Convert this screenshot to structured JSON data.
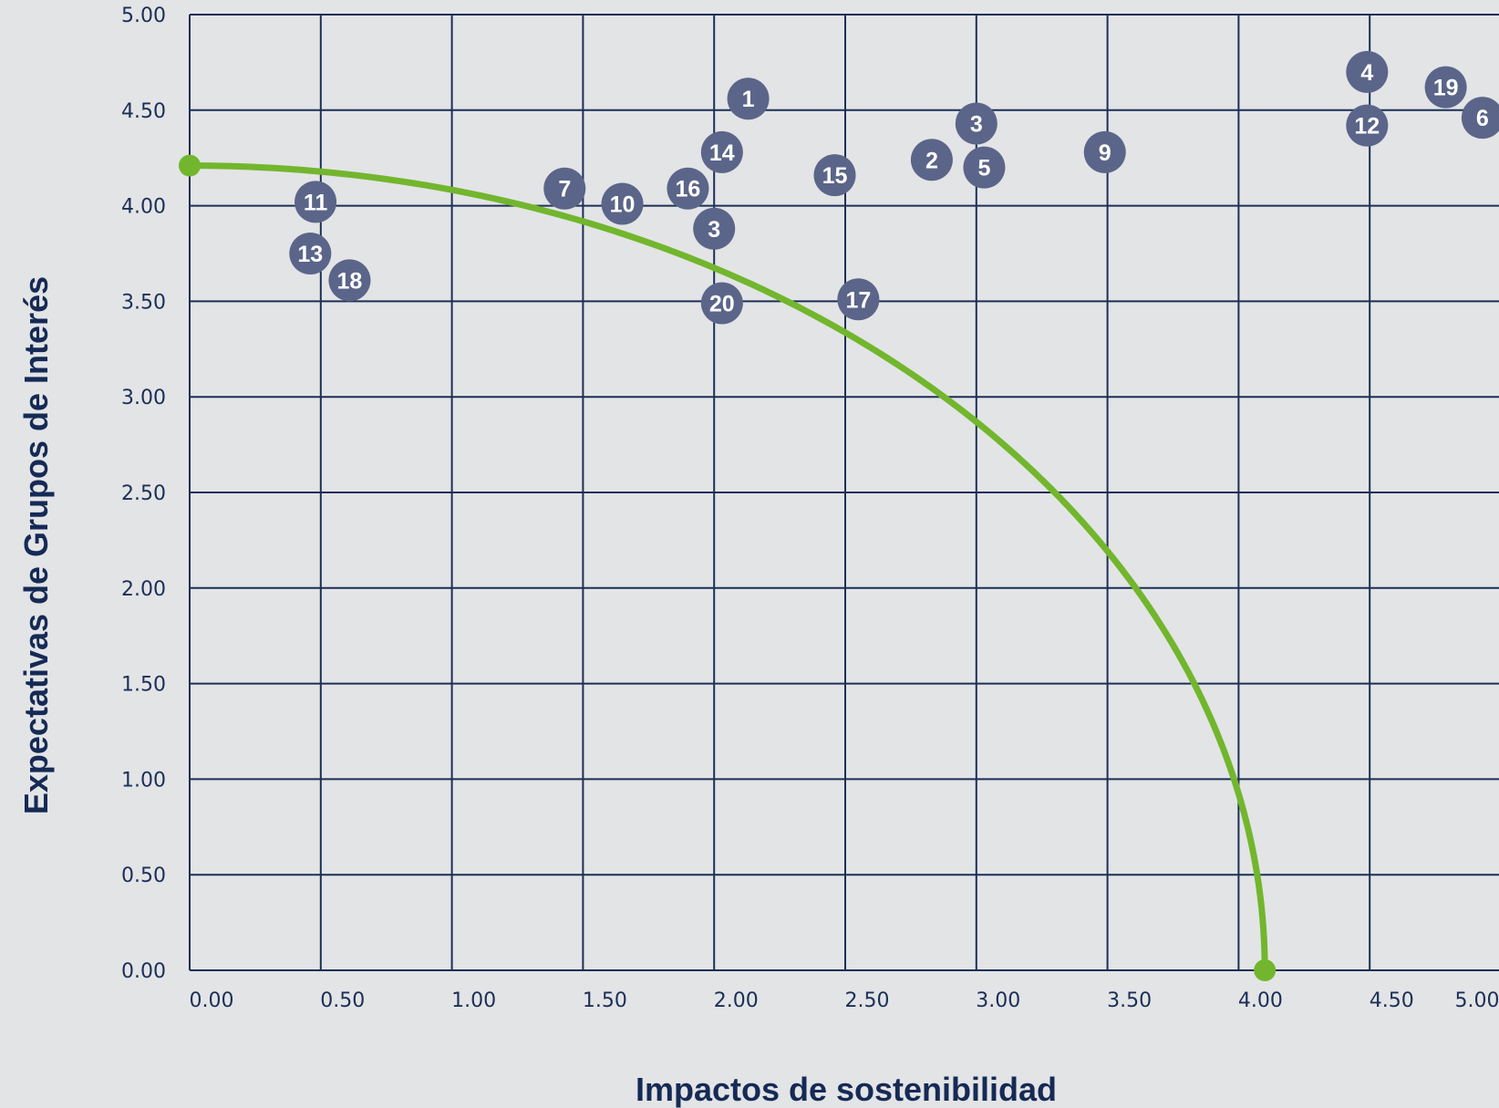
{
  "chart_data": {
    "type": "scatter",
    "title": "",
    "xlabel": "Impactos de sostenibilidad",
    "ylabel": "Expectativas de Grupos de Interés",
    "xlim": [
      0,
      5
    ],
    "ylim": [
      0,
      5
    ],
    "x_ticks": [
      "0.00",
      "0.50",
      "1.00",
      "1.50",
      "2.00",
      "2.50",
      "3.00",
      "3.50",
      "4.00",
      "4.50",
      "5.00"
    ],
    "y_ticks": [
      "0.00",
      "0.50",
      "1.00",
      "1.50",
      "2.00",
      "2.50",
      "3.00",
      "3.50",
      "4.00",
      "4.50",
      "5.00"
    ],
    "grid": true,
    "points": [
      {
        "label": "1",
        "x": 2.13,
        "y": 4.56
      },
      {
        "label": "2",
        "x": 2.83,
        "y": 4.24
      },
      {
        "label": "3",
        "x": 3.0,
        "y": 4.43
      },
      {
        "label": "3",
        "x": 2.0,
        "y": 3.88
      },
      {
        "label": "4",
        "x": 4.49,
        "y": 4.7
      },
      {
        "label": "5",
        "x": 3.03,
        "y": 4.2
      },
      {
        "label": "6",
        "x": 4.93,
        "y": 4.46
      },
      {
        "label": "7",
        "x": 1.43,
        "y": 4.09
      },
      {
        "label": "9",
        "x": 3.49,
        "y": 4.28
      },
      {
        "label": "10",
        "x": 1.65,
        "y": 4.01
      },
      {
        "label": "11",
        "x": 0.48,
        "y": 4.02
      },
      {
        "label": "12",
        "x": 4.49,
        "y": 4.42
      },
      {
        "label": "13",
        "x": 0.46,
        "y": 3.75
      },
      {
        "label": "14",
        "x": 2.03,
        "y": 4.28
      },
      {
        "label": "15",
        "x": 2.46,
        "y": 4.16
      },
      {
        "label": "16",
        "x": 1.9,
        "y": 4.09
      },
      {
        "label": "17",
        "x": 2.55,
        "y": 3.51
      },
      {
        "label": "18",
        "x": 0.61,
        "y": 3.61
      },
      {
        "label": "19",
        "x": 4.79,
        "y": 4.62
      },
      {
        "label": "20",
        "x": 2.03,
        "y": 3.49
      }
    ],
    "threshold_curve": {
      "shape": "quarter-ellipse",
      "x_intercept": 4.1,
      "y_intercept": 4.21
    },
    "colors": {
      "background": "#e3e4e6",
      "grid": "#1b2f57",
      "points": "#5b6589",
      "curve": "#72b62d",
      "text": "#152a55"
    }
  }
}
